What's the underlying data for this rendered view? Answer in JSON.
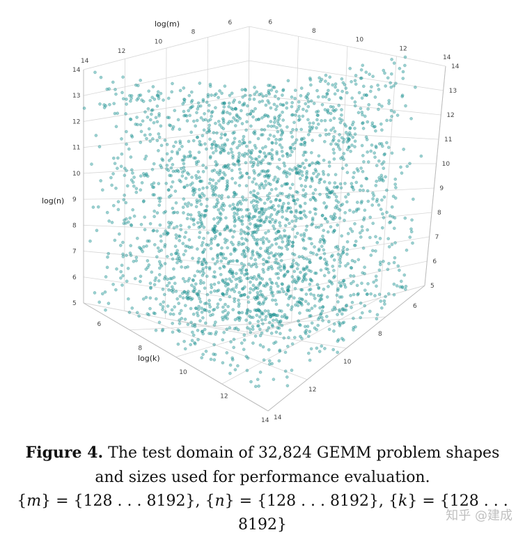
{
  "chart_data": {
    "type": "scatter",
    "subtype": "3d-scatter",
    "x_axis": {
      "label": "log(m)",
      "ticks": [
        6,
        8,
        10,
        12,
        14
      ],
      "range": [
        5,
        14
      ]
    },
    "y_axis": {
      "label": "log(n)",
      "ticks": [
        5,
        6,
        7,
        8,
        9,
        10,
        11,
        12,
        13,
        14
      ],
      "range": [
        5,
        14
      ]
    },
    "z_axis": {
      "label": "log(k)",
      "ticks": [
        6,
        8,
        10,
        12,
        14
      ],
      "range": [
        5,
        14
      ]
    },
    "right_axis_ticks_top": [
      6,
      8,
      10,
      12,
      14
    ],
    "right_axis_ticks_side": [
      5,
      6,
      7,
      8,
      9,
      10,
      11,
      12,
      13,
      14
    ],
    "point_color": "#1f9a99",
    "grid": true
  },
  "caption": {
    "label": "Figure 4.",
    "text": " The test domain of 32,824 GEMM problem shapes",
    "line2": "and sizes used for performance evaluation.",
    "m_var": "m",
    "n_var": "n",
    "k_var": "k",
    "set_range": "128 . . . 8192"
  },
  "watermark": "知乎 @建成"
}
